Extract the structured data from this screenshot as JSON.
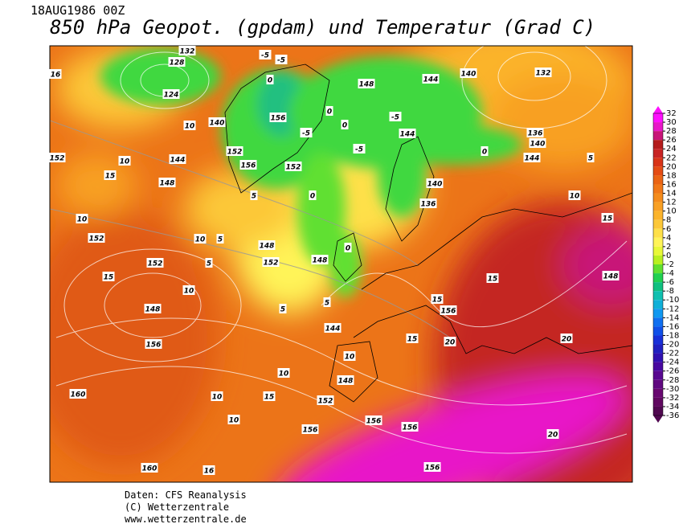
{
  "header": {
    "date": "18AUG1986 00Z",
    "title": "850 hPa Geopot. (gpdam) und  Temperatur (Grad C)"
  },
  "colorbar": {
    "ticks": [
      32,
      30,
      28,
      26,
      24,
      22,
      20,
      18,
      16,
      14,
      12,
      10,
      8,
      6,
      4,
      2,
      0,
      -2,
      -4,
      -6,
      -8,
      -10,
      -12,
      -14,
      -16,
      -18,
      -20,
      -22,
      -24,
      -26,
      -28,
      -30,
      -32,
      -34,
      -36
    ],
    "colors": [
      "#ff10ff",
      "#e818c8",
      "#c81478",
      "#b41c1c",
      "#c82424",
      "#d83418",
      "#e44c14",
      "#ea6414",
      "#f07818",
      "#f48c1c",
      "#f8a024",
      "#fbb42c",
      "#fcc838",
      "#fee048",
      "#fff458",
      "#e8f838",
      "#b8f020",
      "#60e030",
      "#20d050",
      "#10c080",
      "#10c0b0",
      "#10b0d8",
      "#1098f0",
      "#1070f0",
      "#1050e8",
      "#1830d8",
      "#2020c0",
      "#3010b0",
      "#4808a0",
      "#580890",
      "#600880",
      "#680870",
      "#600860",
      "#500850"
    ]
  },
  "map": {
    "labels": [
      "132",
      "128",
      "124",
      "140",
      "152",
      "156",
      "156",
      "152",
      "148",
      "144",
      "140",
      "132",
      "136",
      "140",
      "144",
      "144",
      "140",
      "136",
      "148",
      "152",
      "148",
      "152",
      "152",
      "148",
      "156",
      "144",
      "148",
      "152",
      "156",
      "156",
      "156",
      "156",
      "160",
      "160",
      "156",
      "148",
      "20",
      "20",
      "20",
      "15",
      "15",
      "15",
      "15",
      "10",
      "5",
      "0",
      "-5",
      "-5",
      "-5",
      "0",
      "0",
      "-5",
      "-5",
      "0",
      "5",
      "5",
      "10",
      "10",
      "15",
      "10",
      "10",
      "16",
      "10",
      "5",
      "10",
      "5",
      "10",
      "15",
      "16",
      "152",
      "144",
      "148",
      "10",
      "15",
      "10",
      "5",
      "0",
      "0"
    ]
  },
  "footer": {
    "lines": [
      "Daten: CFS Reanalysis",
      "(C) Wetterzentrale",
      "www.wetterzentrale.de"
    ]
  }
}
